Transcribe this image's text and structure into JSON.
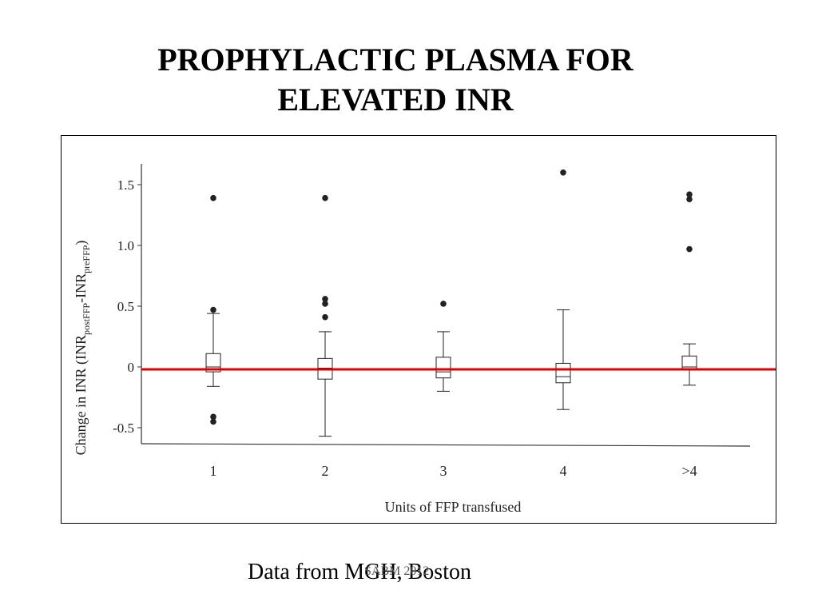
{
  "slide": {
    "title_line1": "PROPHYLACTIC PLASMA FOR",
    "title_line2": "ELEVATED INR",
    "footer_source": "Data from MGH, Boston",
    "footer_slide_number": "SABM 2012"
  },
  "chart_data": {
    "type": "boxplot",
    "xlabel": "Units of FFP transfused",
    "ylabel_parts": {
      "pre": "Change in INR (INR",
      "sub1": "postFFP",
      "mid": "-INR",
      "sub2": "preFFP",
      "post": ")"
    },
    "categories": [
      "1",
      "2",
      "3",
      "4",
      ">4"
    ],
    "yticks": [
      {
        "value": 1.5,
        "label": "1.5"
      },
      {
        "value": 1.0,
        "label": "1.0"
      },
      {
        "value": 0.5,
        "label": "0.5"
      },
      {
        "value": 0,
        "label": "0"
      },
      {
        "value": -0.5,
        "label": "-0.5"
      }
    ],
    "ylim": [
      -0.65,
      1.65
    ],
    "boxes": [
      {
        "category": "1",
        "whisker_low": -0.16,
        "q1": -0.04,
        "median": 0.0,
        "q3": 0.11,
        "whisker_high": 0.44,
        "outliers": [
          1.39,
          0.47,
          -0.41,
          -0.45
        ]
      },
      {
        "category": "2",
        "whisker_low": -0.57,
        "q1": -0.1,
        "median": -0.01,
        "q3": 0.07,
        "whisker_high": 0.29,
        "outliers": [
          1.39,
          0.56,
          0.52,
          0.41
        ]
      },
      {
        "category": "3",
        "whisker_low": -0.2,
        "q1": -0.09,
        "median": -0.04,
        "q3": 0.08,
        "whisker_high": 0.29,
        "outliers": [
          0.52
        ]
      },
      {
        "category": "4",
        "whisker_low": -0.35,
        "q1": -0.13,
        "median": -0.08,
        "q3": 0.03,
        "whisker_high": 0.47,
        "outliers": [
          1.6
        ]
      },
      {
        "category": ">4",
        "whisker_low": -0.15,
        "q1": -0.02,
        "median": 0.0,
        "q3": 0.09,
        "whisker_high": 0.19,
        "outliers": [
          1.42,
          1.38,
          0.97
        ]
      }
    ],
    "reference_line": {
      "value": -0.02,
      "color": "#e00000"
    },
    "grid": false,
    "legend": "none"
  }
}
